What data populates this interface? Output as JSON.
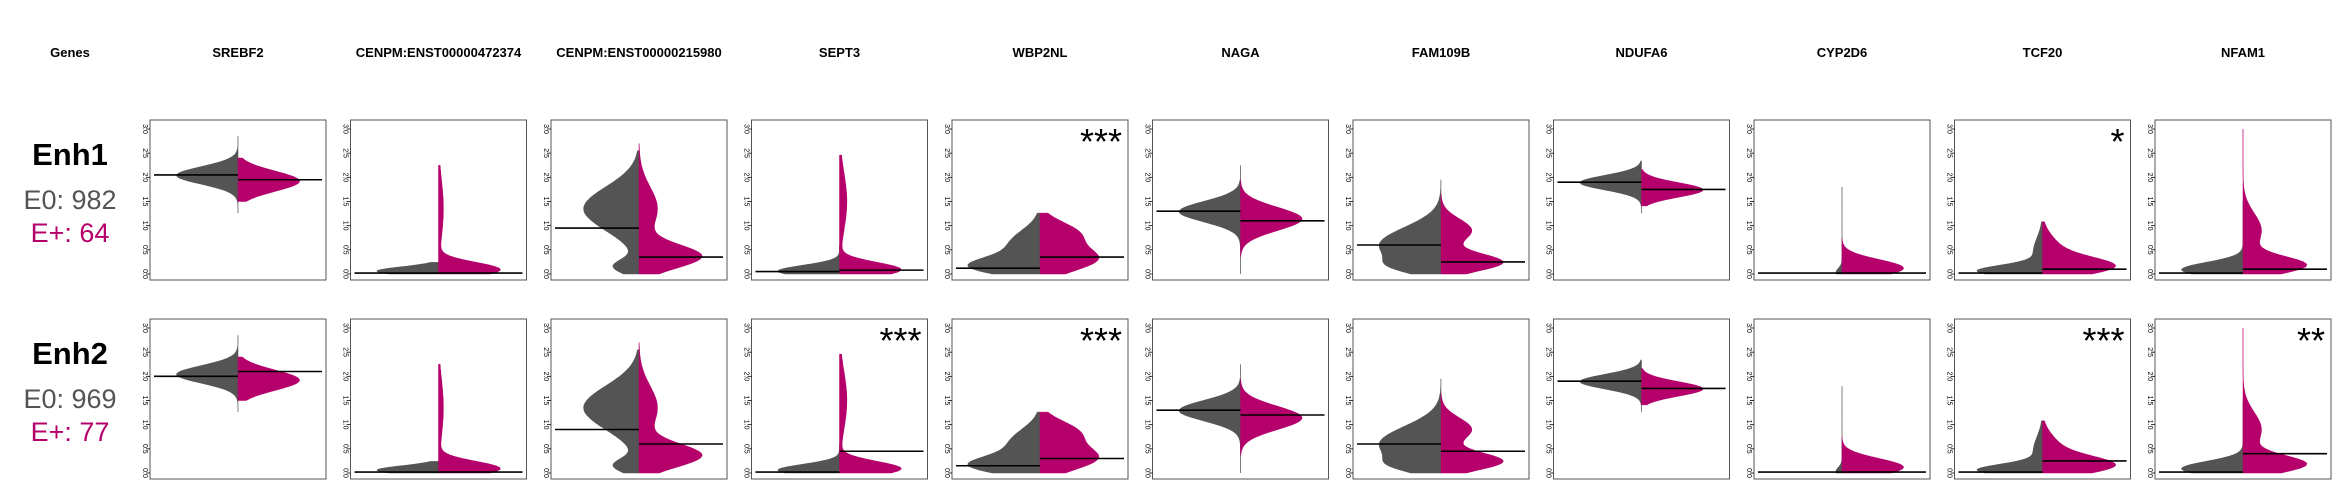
{
  "header_label": "Genes",
  "colors": {
    "e0": "#545454",
    "eplus": "#B5006B",
    "axis": "#000000",
    "panel_border": "#555555"
  },
  "chart_data": {
    "type": "violin",
    "layout": "split-violin grid",
    "ylim": [
      0,
      3
    ],
    "yticks": [
      "0.0",
      "0.5",
      "1.0",
      "1.5",
      "2.0",
      "2.5",
      "3.0"
    ],
    "genes": [
      "SREBF2",
      "CENPM:ENST00000472374",
      "CENPM:ENST00000215980",
      "SEPT3",
      "WBP2NL",
      "NAGA",
      "FAM109B",
      "NDUFA6",
      "CYP2D6",
      "TCF20",
      "NFAM1"
    ],
    "rows": [
      {
        "name": "Enh1",
        "e0_label": "E0: 982",
        "eplus_label": "E+: 64",
        "significance": [
          "",
          "",
          "",
          "",
          "***",
          "",
          "",
          "",
          "",
          "*",
          ""
        ],
        "medians_e0": [
          2.05,
          0.02,
          0.95,
          0.05,
          0.12,
          1.3,
          0.6,
          1.9,
          0.02,
          0.02,
          0.02
        ],
        "medians_eplus": [
          1.95,
          0.02,
          0.35,
          0.08,
          0.35,
          1.1,
          0.25,
          1.75,
          0.02,
          0.1,
          0.1
        ]
      },
      {
        "name": "Enh2",
        "e0_label": "E0: 969",
        "eplus_label": "E+: 77",
        "significance": [
          "",
          "",
          "",
          "***",
          "***",
          "",
          "",
          "",
          "",
          "***",
          "**"
        ],
        "medians_e0": [
          2.0,
          0.02,
          0.9,
          0.02,
          0.15,
          1.3,
          0.6,
          1.9,
          0.02,
          0.02,
          0.02
        ],
        "medians_eplus": [
          2.1,
          0.02,
          0.6,
          0.45,
          0.3,
          1.2,
          0.45,
          1.75,
          0.02,
          0.25,
          0.4
        ]
      }
    ]
  }
}
